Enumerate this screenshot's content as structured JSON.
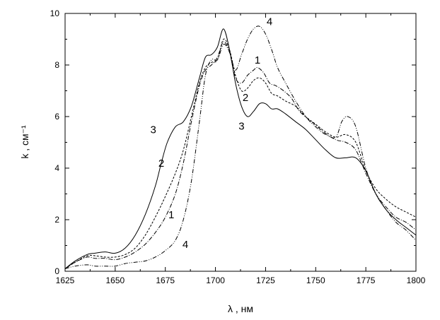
{
  "chart_data": {
    "type": "line",
    "xlabel": "λ , нм",
    "ylabel": "k , см⁻¹",
    "xlim": [
      1625,
      1800
    ],
    "ylim": [
      0,
      10
    ],
    "xticks": [
      "1625",
      "1650",
      "1675",
      "1700",
      "1725",
      "1750",
      "1775",
      "1800"
    ],
    "yticks": [
      "0",
      "2",
      "4",
      "6",
      "8",
      "10"
    ],
    "grid": false,
    "series": [
      {
        "name": "1",
        "dash": "6,2,1,2",
        "x": [
          1625,
          1630,
          1636,
          1640,
          1645,
          1650,
          1655,
          1660,
          1665,
          1670,
          1675,
          1680,
          1684,
          1688,
          1692,
          1695,
          1698,
          1701,
          1704,
          1707,
          1710,
          1713,
          1716,
          1719,
          1721,
          1724,
          1727,
          1730,
          1734,
          1738,
          1742,
          1748,
          1754,
          1760,
          1765,
          1770,
          1775,
          1780,
          1785,
          1790,
          1795,
          1800
        ],
        "y": [
          0.1,
          0.35,
          0.55,
          0.5,
          0.5,
          0.45,
          0.55,
          0.75,
          1.05,
          1.5,
          2.1,
          3.0,
          4.2,
          5.8,
          7.2,
          7.8,
          8.0,
          8.3,
          8.9,
          8.5,
          7.5,
          7.3,
          7.6,
          7.8,
          7.9,
          7.7,
          7.3,
          7.2,
          7.0,
          6.7,
          6.2,
          5.8,
          5.4,
          5.1,
          5.0,
          4.7,
          3.8,
          3.0,
          2.5,
          2.1,
          1.9,
          1.6
        ]
      },
      {
        "name": "2",
        "dash": "3,2",
        "x": [
          1625,
          1630,
          1636,
          1640,
          1645,
          1650,
          1655,
          1660,
          1665,
          1670,
          1675,
          1680,
          1684,
          1688,
          1692,
          1695,
          1698,
          1701,
          1704,
          1707,
          1710,
          1713,
          1716,
          1719,
          1722,
          1725,
          1728,
          1731,
          1735,
          1740,
          1745,
          1750,
          1755,
          1760,
          1765,
          1770,
          1775,
          1780,
          1785,
          1790,
          1795,
          1800
        ],
        "y": [
          0.1,
          0.35,
          0.6,
          0.6,
          0.55,
          0.55,
          0.65,
          0.9,
          1.4,
          2.1,
          2.9,
          3.8,
          4.7,
          6.0,
          7.3,
          7.9,
          8.1,
          8.2,
          9.0,
          8.6,
          7.6,
          7.0,
          7.1,
          7.4,
          7.5,
          7.3,
          6.9,
          6.8,
          6.6,
          6.4,
          6.0,
          5.7,
          5.4,
          5.2,
          5.3,
          5.0,
          3.9,
          3.2,
          2.8,
          2.5,
          2.3,
          2.1
        ]
      },
      {
        "name": "3",
        "dash": "none",
        "x": [
          1625,
          1630,
          1636,
          1640,
          1645,
          1650,
          1655,
          1660,
          1665,
          1670,
          1673,
          1676,
          1680,
          1684,
          1688,
          1692,
          1695,
          1698,
          1701,
          1704,
          1707,
          1710,
          1713,
          1716,
          1719,
          1722,
          1725,
          1728,
          1731,
          1735,
          1740,
          1745,
          1750,
          1755,
          1760,
          1765,
          1770,
          1775,
          1780,
          1785,
          1790,
          1795,
          1800
        ],
        "y": [
          0.1,
          0.4,
          0.65,
          0.7,
          0.75,
          0.7,
          0.9,
          1.4,
          2.2,
          3.3,
          4.2,
          5.0,
          5.6,
          5.8,
          6.4,
          7.5,
          8.3,
          8.4,
          8.7,
          9.4,
          8.6,
          7.3,
          6.4,
          6.0,
          6.2,
          6.5,
          6.5,
          6.3,
          6.3,
          6.1,
          5.8,
          5.5,
          5.1,
          4.7,
          4.4,
          4.4,
          4.4,
          3.9,
          3.0,
          2.4,
          2.0,
          1.7,
          1.4
        ]
      },
      {
        "name": "4",
        "dash": "6,2,1,2,1,2",
        "x": [
          1625,
          1630,
          1636,
          1640,
          1645,
          1650,
          1655,
          1660,
          1665,
          1670,
          1675,
          1680,
          1684,
          1688,
          1692,
          1695,
          1698,
          1701,
          1704,
          1707,
          1710,
          1713,
          1716,
          1719,
          1722,
          1725,
          1728,
          1731,
          1735,
          1740,
          1745,
          1750,
          1755,
          1760,
          1763,
          1766,
          1770,
          1775,
          1780,
          1785,
          1790,
          1795,
          1800
        ],
        "y": [
          0.1,
          0.2,
          0.25,
          0.2,
          0.2,
          0.2,
          0.3,
          0.35,
          0.4,
          0.55,
          0.8,
          1.2,
          2.0,
          3.5,
          5.8,
          7.6,
          8.2,
          8.2,
          8.8,
          8.5,
          7.8,
          8.4,
          9.0,
          9.4,
          9.5,
          9.2,
          8.6,
          7.9,
          7.3,
          6.6,
          6.0,
          5.6,
          5.3,
          5.2,
          5.8,
          6.0,
          5.6,
          4.0,
          3.0,
          2.4,
          1.9,
          1.6,
          1.2
        ]
      }
    ],
    "annotations": [
      {
        "text": "1",
        "x": 1721,
        "y": 8.05
      },
      {
        "text": "1",
        "x": 1678,
        "y": 2.05
      },
      {
        "text": "2",
        "x": 1715,
        "y": 6.6
      },
      {
        "text": "2",
        "x": 1673,
        "y": 4.05
      },
      {
        "text": "3",
        "x": 1713,
        "y": 5.5
      },
      {
        "text": "3",
        "x": 1669,
        "y": 5.35
      },
      {
        "text": "4",
        "x": 1727,
        "y": 9.55
      },
      {
        "text": "4",
        "x": 1685,
        "y": 0.9
      }
    ]
  }
}
